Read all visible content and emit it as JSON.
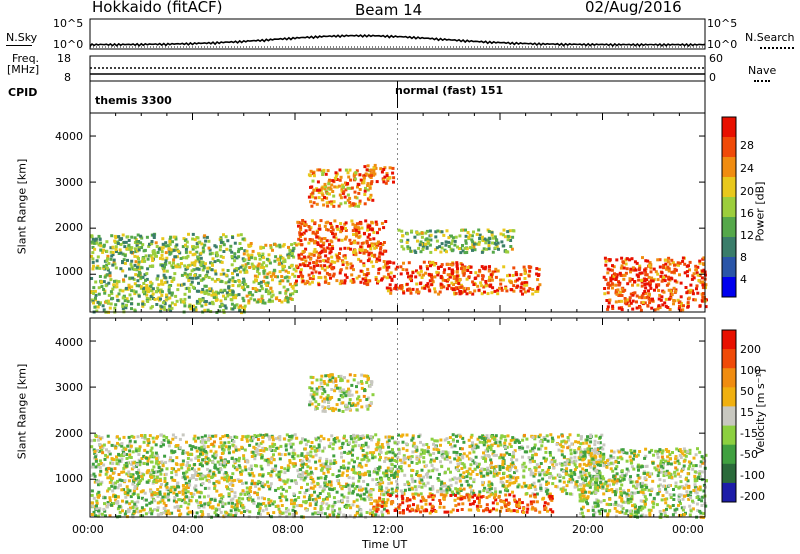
{
  "header": {
    "station": "Hokkaido (fitACF)",
    "beam": "Beam 14",
    "date": "02/Aug/2016"
  },
  "strip_panels": {
    "nsky_label": "N.Sky",
    "nsky_ticks": [
      "10^5",
      "10^0"
    ],
    "nsearch_label": "N.Search",
    "nsearch_ticks": [
      "10^5",
      "10^0"
    ],
    "freq_label_1": "Freq.",
    "freq_label_2": "[MHz]",
    "freq_ticks": [
      "18",
      "8"
    ],
    "nave_label": "Nave",
    "nave_ticks": [
      "60",
      "0"
    ],
    "cpid_label": "CPID",
    "cpid_modes": [
      {
        "name": "themis 3300",
        "start_hour": 0
      },
      {
        "name": "normal (fast) 151",
        "start_hour": 12
      }
    ]
  },
  "chart_data": [
    {
      "type": "heatmap",
      "name": "power",
      "ylabel": "Slant Range [km]",
      "yticks": [
        "4000",
        "3000",
        "2000",
        "1000"
      ],
      "ylim": [
        180,
        4500
      ],
      "colorbar_label": "Power [dB]",
      "colorbar_ticks": [
        "28",
        "24",
        "20",
        "16",
        "12",
        "8",
        "4"
      ],
      "colors": [
        "#0000ee",
        "#2a55a8",
        "#3a7d6a",
        "#55a84a",
        "#9cce3c",
        "#e8c81c",
        "#f08c10",
        "#f04a08",
        "#e81000"
      ],
      "regions": [
        {
          "t": [
            0,
            6
          ],
          "r": [
            200,
            1900
          ],
          "level": 0.45
        },
        {
          "t": [
            6,
            8
          ],
          "r": [
            400,
            1700
          ],
          "level": 0.55
        },
        {
          "t": [
            8,
            11.5
          ],
          "r": [
            800,
            2200
          ],
          "level": 0.8
        },
        {
          "t": [
            8.5,
            11
          ],
          "r": [
            2500,
            3300
          ],
          "level": 0.7
        },
        {
          "t": [
            10.5,
            11.8
          ],
          "r": [
            3000,
            3400
          ],
          "level": 0.8
        },
        {
          "t": [
            11.5,
            14.5
          ],
          "r": [
            600,
            1300
          ],
          "level": 0.85
        },
        {
          "t": [
            12,
            16.5
          ],
          "r": [
            1500,
            2000
          ],
          "level": 0.45
        },
        {
          "t": [
            14,
            17.5
          ],
          "r": [
            600,
            1200
          ],
          "level": 0.8
        },
        {
          "t": [
            20,
            24
          ],
          "r": [
            250,
            1400
          ],
          "level": 0.85
        }
      ]
    },
    {
      "type": "heatmap",
      "name": "velocity",
      "ylabel": "Slant Range [km]",
      "yticks": [
        "4000",
        "3000",
        "2000",
        "1000"
      ],
      "ylim": [
        180,
        4500
      ],
      "colorbar_label": "Velocity [m s⁻¹]",
      "colorbar_ticks": [
        "200",
        "100",
        "50",
        "15",
        "-15",
        "-50",
        "-100",
        "-200"
      ],
      "colors": [
        "#1c1ca8",
        "#2a6a3a",
        "#40a040",
        "#8cd040",
        "#c8c8c0",
        "#f0b010",
        "#f08c10",
        "#f04a08",
        "#e81000"
      ],
      "regions": [
        {
          "t": [
            0,
            11.5
          ],
          "r": [
            200,
            2000
          ],
          "level": 0.45
        },
        {
          "t": [
            8.5,
            11
          ],
          "r": [
            2500,
            3300
          ],
          "level": 0.45
        },
        {
          "t": [
            11.5,
            20
          ],
          "r": [
            700,
            2000
          ],
          "level": 0.45
        },
        {
          "t": [
            11,
            18
          ],
          "r": [
            300,
            700
          ],
          "level": 0.8
        },
        {
          "t": [
            19,
            24
          ],
          "r": [
            200,
            1700
          ],
          "level": 0.45
        }
      ]
    }
  ],
  "xaxis": {
    "ticks": [
      "00:00",
      "04:00",
      "08:00",
      "12:00",
      "16:00",
      "20:00",
      "00:00"
    ],
    "label": "Time UT"
  }
}
